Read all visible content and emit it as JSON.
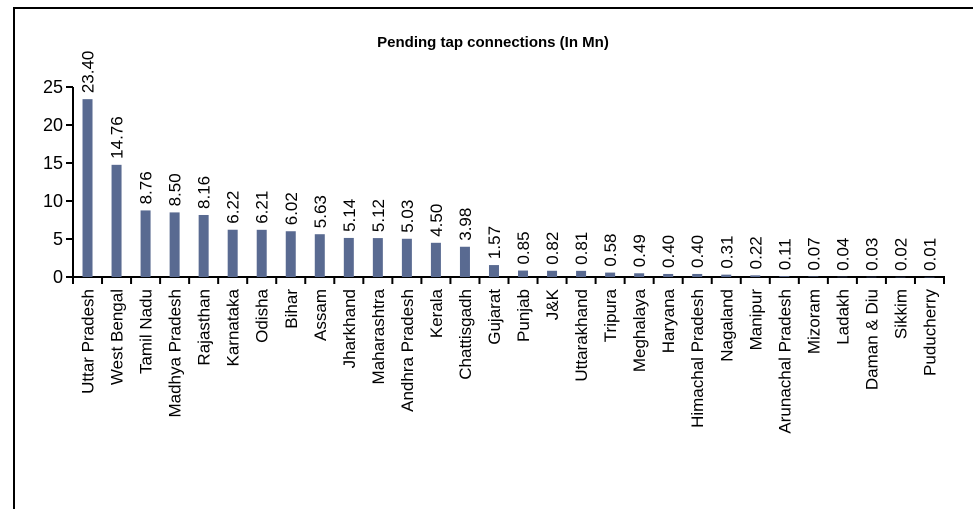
{
  "chart_data": {
    "type": "bar",
    "title": "Pending tap connections (In Mn)",
    "xlabel": "",
    "ylabel": "",
    "ylim": [
      0,
      25
    ],
    "yticks": [
      0,
      5,
      10,
      15,
      20,
      25
    ],
    "grid": false,
    "bar_color": "#596a91",
    "categories": [
      "Uttar Pradesh",
      "West Bengal",
      "Tamil Nadu",
      "Madhya Pradesh",
      "Rajasthan",
      "Karnataka",
      "Odisha",
      "Bihar",
      "Assam",
      "Jharkhand",
      "Maharashtra",
      "Andhra Pradesh",
      "Kerala",
      "Chattisgadh",
      "Gujarat",
      "Punjab",
      "J&K",
      "Uttarakhand",
      "Tripura",
      "Meghalaya",
      "Haryana",
      "Himachal Pradesh",
      "Nagaland",
      "Manipur",
      "Arunachal Pradesh",
      "Mizoram",
      "Ladakh",
      "Daman & Diu",
      "Sikkim",
      "Puducherry"
    ],
    "values": [
      23.4,
      14.76,
      8.76,
      8.5,
      8.16,
      6.22,
      6.21,
      6.02,
      5.63,
      5.14,
      5.12,
      5.03,
      4.5,
      3.98,
      1.57,
      0.85,
      0.82,
      0.81,
      0.58,
      0.49,
      0.4,
      0.4,
      0.31,
      0.22,
      0.11,
      0.07,
      0.04,
      0.03,
      0.02,
      0.01
    ],
    "data_labels": [
      "23.40",
      "14.76",
      "8.76",
      "8.50",
      "8.16",
      "6.22",
      "6.21",
      "6.02",
      "5.63",
      "5.14",
      "5.12",
      "5.03",
      "4.50",
      "3.98",
      "1.57",
      "0.85",
      "0.82",
      "0.81",
      "0.58",
      "0.49",
      "0.40",
      "0.40",
      "0.31",
      "0.22",
      "0.11",
      "0.07",
      "0.04",
      "0.03",
      "0.02",
      "0.01"
    ]
  }
}
